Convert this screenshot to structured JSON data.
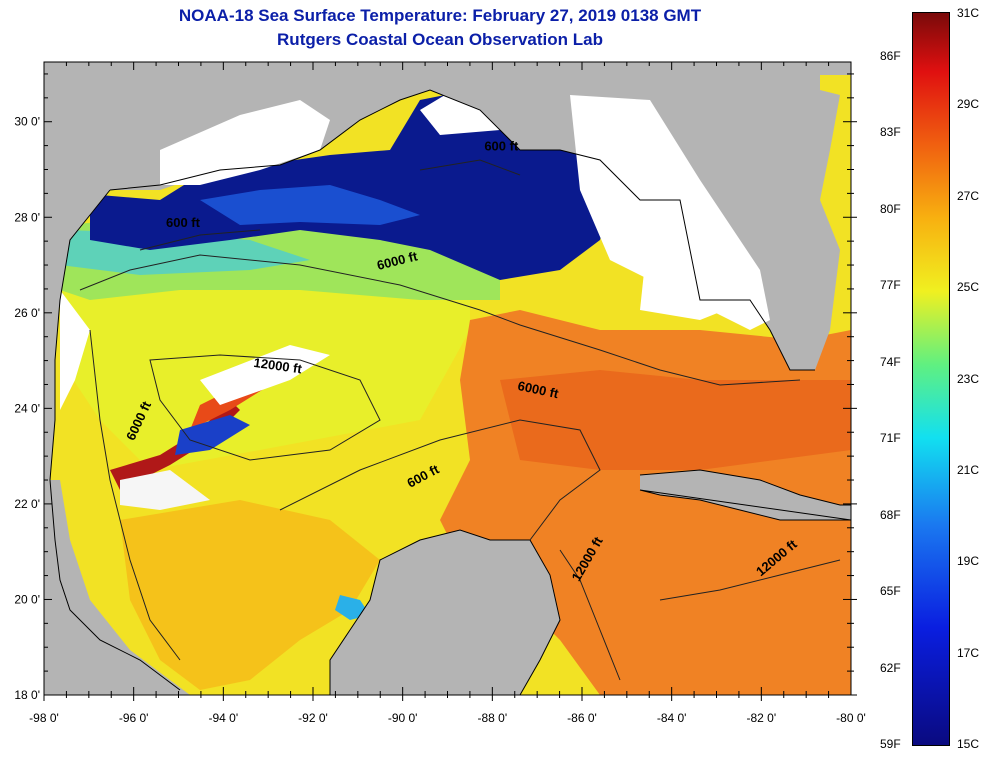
{
  "title": "NOAA-18 Sea Surface Temperature:  February 27, 2019 0138 GMT",
  "subtitle": "Rutgers Coastal Ocean Observation Lab",
  "axes": {
    "lon_labels": [
      "-98 0'",
      "-96 0'",
      "-94 0'",
      "-92 0'",
      "-90 0'",
      "-88 0'",
      "-86 0'",
      "-84 0'",
      "-82 0'",
      "-80 0'"
    ],
    "lat_labels": [
      "18 0'",
      "20 0'",
      "22 0'",
      "24 0'",
      "26 0'",
      "28 0'",
      "30 0'"
    ]
  },
  "depth_contour_labels": [
    {
      "text": "600 ft",
      "lon": -94.9,
      "lat": 27.8
    },
    {
      "text": "600 ft",
      "lon": -87.8,
      "lat": 29.4
    },
    {
      "text": "6000 ft",
      "lon": -90.1,
      "lat": 27.0
    },
    {
      "text": "12000 ft",
      "lon": -92.8,
      "lat": 24.8
    },
    {
      "text": "6000 ft",
      "lon": -95.8,
      "lat": 23.7
    },
    {
      "text": "6000 ft",
      "lon": -87.0,
      "lat": 24.3
    },
    {
      "text": "600 ft",
      "lon": -89.5,
      "lat": 22.5
    },
    {
      "text": "12000 ft",
      "lon": -85.8,
      "lat": 20.8
    },
    {
      "text": "12000 ft",
      "lon": -81.6,
      "lat": 20.8
    }
  ],
  "colorbar": {
    "fahrenheit": [
      "86F",
      "83F",
      "80F",
      "77F",
      "74F",
      "71F",
      "68F",
      "65F",
      "62F",
      "59F"
    ],
    "celsius": [
      "31C",
      "29C",
      "27C",
      "25C",
      "23C",
      "21C",
      "19C",
      "17C",
      "15C"
    ]
  },
  "colors": {
    "title": "#0b1fa8",
    "land": "#b4b4b4",
    "cloud": "#ffffff"
  }
}
